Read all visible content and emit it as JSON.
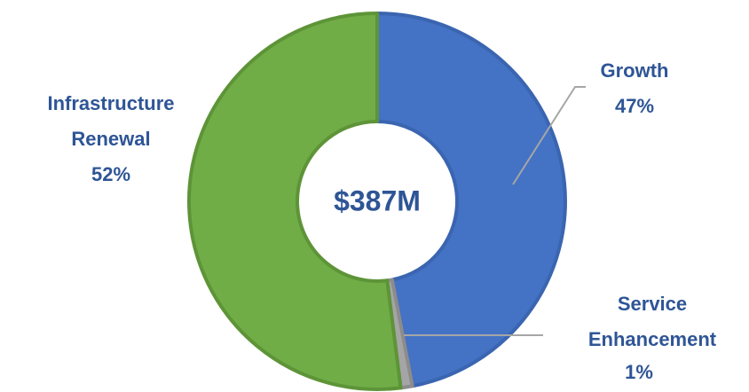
{
  "chart_data": {
    "type": "pie",
    "donut": true,
    "center_label": "$387M",
    "categories": [
      "Growth",
      "Service Enhancement",
      "Infrastructure Renewal"
    ],
    "values": [
      47,
      1,
      52
    ],
    "value_labels": [
      "47%",
      "1%",
      "52%"
    ],
    "colors": [
      "#4472c4",
      "#a5a5a5",
      "#70ad47"
    ]
  }
}
